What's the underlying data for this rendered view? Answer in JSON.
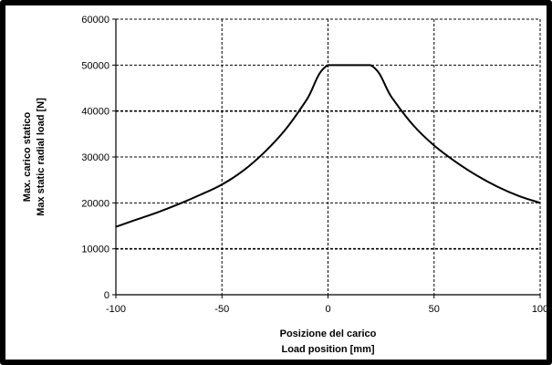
{
  "chart_data": {
    "type": "line",
    "title": "",
    "xlabel": [
      "Posizione del carico",
      "Load position [mm]"
    ],
    "ylabel": [
      "Max. carico statico",
      "Max static radial load [N]"
    ],
    "xlim": [
      -100,
      100
    ],
    "ylim": [
      0,
      60000
    ],
    "xticks": [
      -100,
      -50,
      0,
      50,
      100
    ],
    "yticks": [
      0,
      10000,
      20000,
      30000,
      40000,
      50000,
      60000
    ],
    "xtick_labels": [
      "-100",
      "-50",
      "0",
      "50",
      "100"
    ],
    "ytick_labels": [
      "0",
      "10000",
      "20000",
      "30000",
      "40000",
      "50000",
      "60000"
    ],
    "grid": true,
    "legend": "none",
    "series": [
      {
        "color": "#000000",
        "x": [
          -100,
          -90,
          -80,
          -70,
          -60,
          -50,
          -40,
          -30,
          -20,
          -10,
          0,
          20,
          30,
          40,
          50,
          60,
          70,
          80,
          90,
          100
        ],
        "y": [
          14800,
          16400,
          18000,
          19800,
          21800,
          24000,
          27000,
          31000,
          36000,
          42500,
          50000,
          50000,
          43000,
          37000,
          32500,
          29000,
          26000,
          23500,
          21500,
          20000
        ]
      }
    ]
  }
}
